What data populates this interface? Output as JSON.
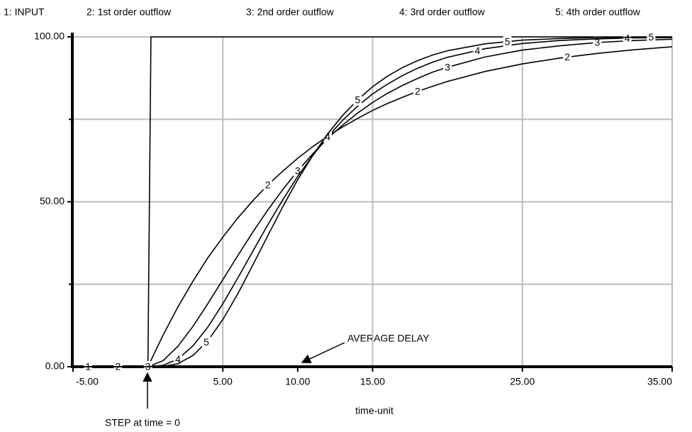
{
  "chart_data": {
    "type": "line",
    "x_label": "time-unit",
    "x": [
      -5,
      0,
      1,
      2,
      3,
      4,
      5,
      6,
      7,
      8,
      9,
      10,
      11,
      12,
      13,
      14,
      15,
      16,
      17,
      18,
      19,
      20,
      22.5,
      25,
      27.5,
      30,
      32.5,
      35
    ],
    "series": [
      {
        "name": "1: INPUT",
        "line_label": "1",
        "color": "#000000",
        "x": [
          -5,
          0,
          0.2,
          35
        ],
        "values": [
          0,
          0,
          100,
          100
        ]
      },
      {
        "name": "2: 1st order outflow",
        "line_label": "2",
        "color": "#000000",
        "values": [
          0,
          0,
          9.5,
          18.1,
          25.9,
          33.0,
          39.3,
          45.1,
          50.3,
          55.1,
          59.3,
          63.2,
          66.7,
          69.9,
          72.7,
          75.3,
          77.7,
          79.8,
          81.7,
          83.5,
          85.0,
          86.5,
          89.5,
          91.8,
          93.6,
          95.0,
          96.1,
          97.0
        ]
      },
      {
        "name": "3: 2nd order outflow",
        "line_label": "3",
        "color": "#000000",
        "values": [
          0,
          0,
          1.8,
          6.2,
          12.2,
          19.1,
          26.4,
          33.7,
          40.8,
          47.5,
          53.7,
          59.4,
          64.5,
          69.2,
          73.3,
          76.9,
          80.1,
          82.9,
          85.3,
          87.4,
          89.3,
          90.8,
          93.9,
          96.0,
          97.3,
          98.3,
          98.9,
          99.3
        ]
      },
      {
        "name": "4: 3rd order outflow",
        "line_label": "4",
        "color": "#000000",
        "values": [
          0,
          0,
          0.4,
          2.3,
          6.3,
          12.0,
          19.1,
          26.9,
          35.0,
          43.0,
          50.6,
          57.7,
          64.0,
          69.7,
          74.7,
          79.0,
          82.7,
          85.7,
          88.3,
          90.5,
          92.3,
          93.8,
          96.4,
          98.0,
          98.9,
          99.4,
          99.7,
          99.8
        ]
      },
      {
        "name": "5: 4th order outflow",
        "line_label": "5",
        "color": "#000000",
        "values": [
          0,
          0,
          0.1,
          0.9,
          3.4,
          7.9,
          14.3,
          22.1,
          30.8,
          39.7,
          48.5,
          56.7,
          64.0,
          70.6,
          76.2,
          80.9,
          84.9,
          88.1,
          90.7,
          92.8,
          94.5,
          95.8,
          97.9,
          99.0,
          99.5,
          99.8,
          99.9,
          100.0
        ]
      }
    ],
    "xlim": [
      -5,
      35
    ],
    "xticks": [
      {
        "value": -5,
        "label": "-5.00"
      },
      {
        "value": 5,
        "label": "5.00"
      },
      {
        "value": 10,
        "label": "10.00"
      },
      {
        "value": 15,
        "label": "15.00"
      },
      {
        "value": 25,
        "label": "25.00"
      },
      {
        "value": 35,
        "label": "35.00"
      }
    ],
    "xgrid": [
      5,
      15,
      25,
      35
    ],
    "ylim": [
      0,
      100
    ],
    "yticks": [
      {
        "value": 0,
        "label": "0.00"
      },
      {
        "value": 50,
        "label": "50.00"
      },
      {
        "value": 100,
        "label": "100.00"
      }
    ],
    "yminor": [
      25,
      75
    ],
    "ygrid": [
      25,
      50,
      75,
      100
    ],
    "annotations": [
      {
        "text": "AVERAGE DELAY"
      },
      {
        "text": "STEP at time = 0"
      }
    ]
  }
}
